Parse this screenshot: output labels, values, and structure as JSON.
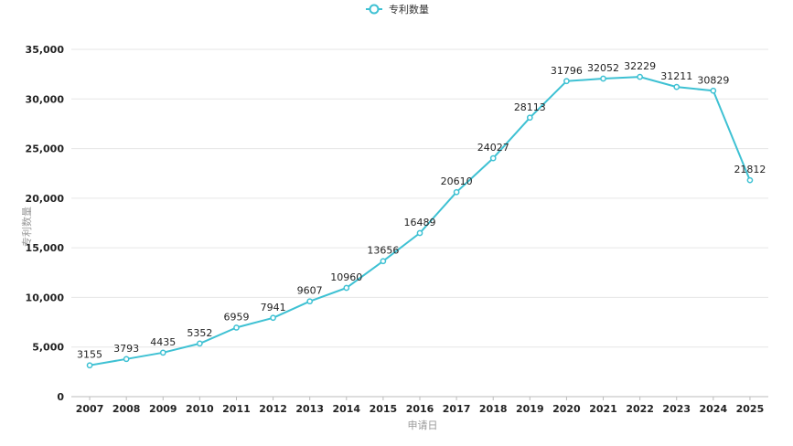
{
  "chart_data": {
    "type": "line",
    "legend": {
      "label": "专利数量",
      "position": "top-center"
    },
    "xlabel": "申请日",
    "ylabel": "专利数量",
    "ylim": [
      0,
      35000
    ],
    "yticks": [
      "0",
      "5,000",
      "10,000",
      "15,000",
      "20,000",
      "25,000",
      "30,000",
      "35,000"
    ],
    "ytick_values": [
      0,
      5000,
      10000,
      15000,
      20000,
      25000,
      30000,
      35000
    ],
    "grid": true,
    "color": "#3ec1d3",
    "categories": [
      "2007",
      "2008",
      "2009",
      "2010",
      "2011",
      "2012",
      "2013",
      "2014",
      "2015",
      "2016",
      "2017",
      "2018",
      "2019",
      "2020",
      "2021",
      "2022",
      "2023",
      "2024",
      "2025"
    ],
    "series": [
      {
        "name": "专利数量",
        "values": [
          3155,
          3793,
          4435,
          5352,
          6959,
          7941,
          9607,
          10960,
          13656,
          16489,
          20610,
          24027,
          28113,
          31796,
          32052,
          32229,
          31211,
          30829,
          21812
        ]
      }
    ]
  }
}
